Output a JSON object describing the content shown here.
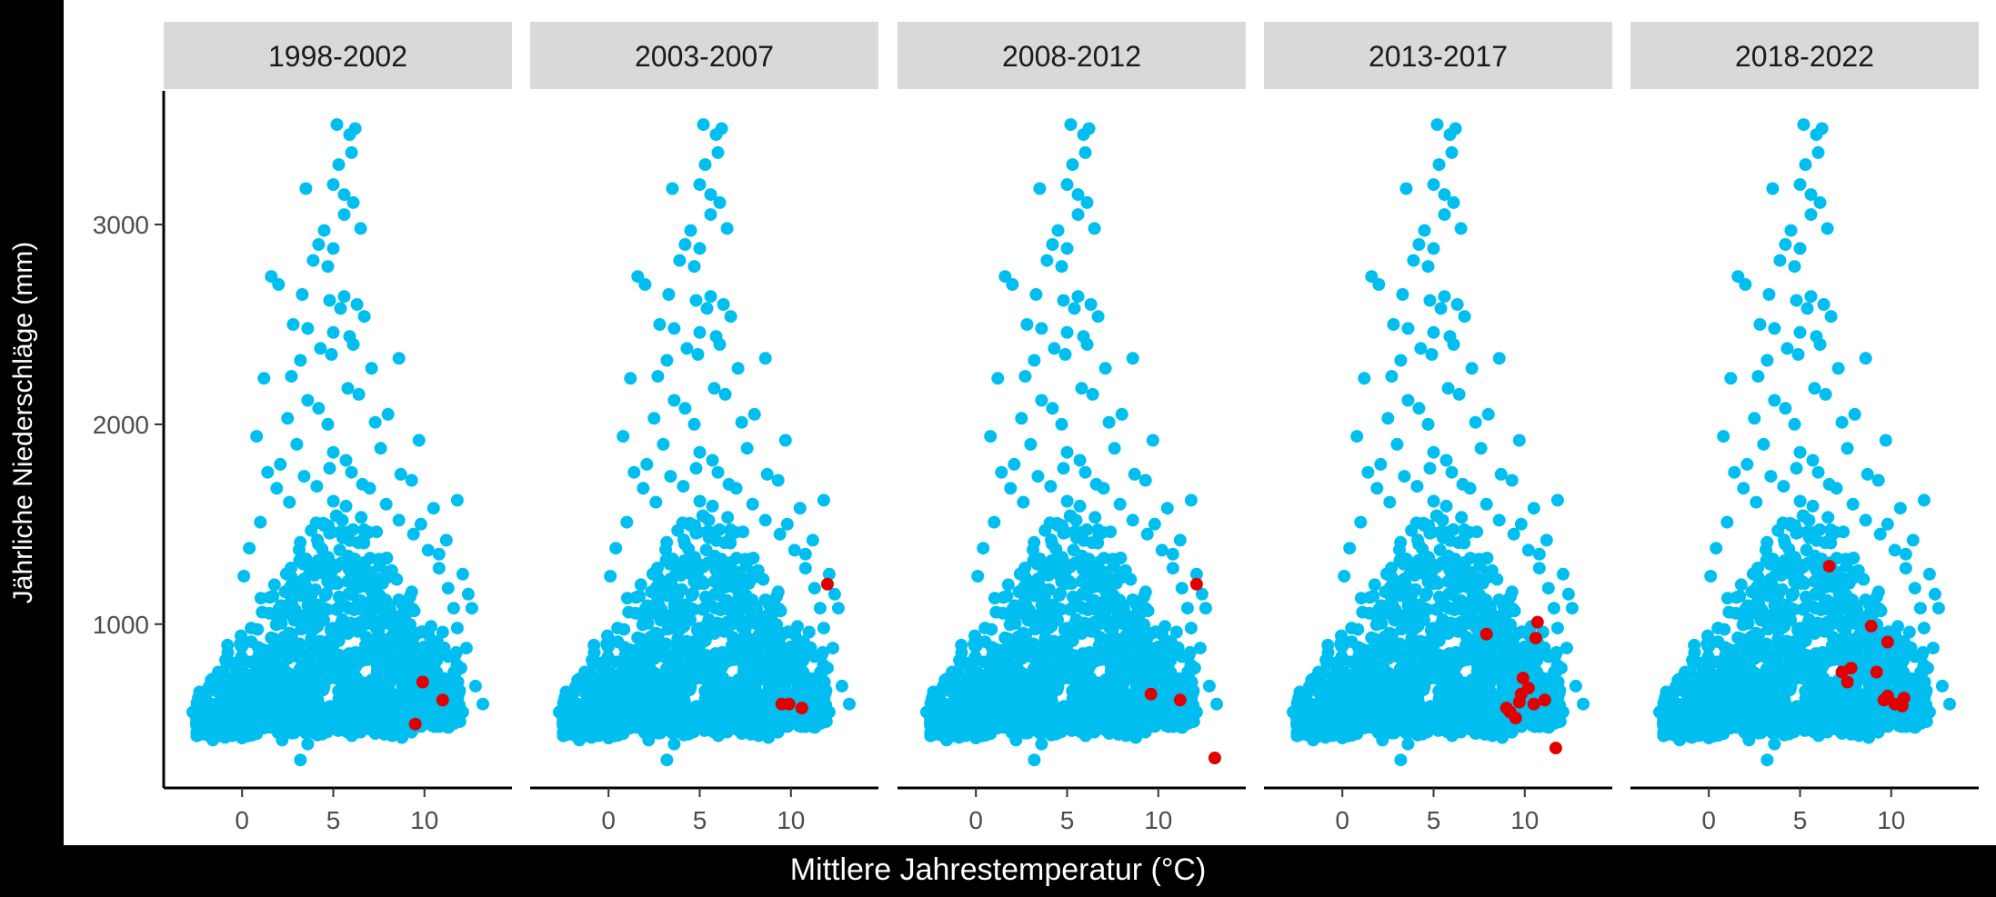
{
  "chart_data": {
    "type": "scatter",
    "layout": "faceted-1x5",
    "xlabel": "Mittlere Jahrestemperatur (°C)",
    "ylabel": "Jährliche Niederschläge (mm)",
    "xlim": [
      -3.5,
      14
    ],
    "ylim": [
      200,
      3600
    ],
    "x_ticks": [
      0,
      5,
      10
    ],
    "y_ticks": [
      1000,
      2000,
      3000
    ],
    "grid": false,
    "colors": {
      "background_series": "#00BFF0",
      "highlight_series": "#E00000",
      "strip_fill": "#D9D9D9"
    },
    "background_cloud": [
      [
        5.2,
        3500
      ],
      [
        5.9,
        3450
      ],
      [
        6.2,
        3480
      ],
      [
        6.0,
        3360
      ],
      [
        5.3,
        3300
      ],
      [
        5.0,
        3200
      ],
      [
        3.5,
        3180
      ],
      [
        5.6,
        3150
      ],
      [
        6.1,
        3110
      ],
      [
        5.6,
        3050
      ],
      [
        6.5,
        2980
      ],
      [
        4.5,
        2970
      ],
      [
        4.2,
        2900
      ],
      [
        5.0,
        2880
      ],
      [
        3.9,
        2820
      ],
      [
        4.7,
        2790
      ],
      [
        1.6,
        2740
      ],
      [
        2.0,
        2700
      ],
      [
        3.3,
        2650
      ],
      [
        5.6,
        2640
      ],
      [
        4.8,
        2620
      ],
      [
        6.3,
        2600
      ],
      [
        5.4,
        2580
      ],
      [
        6.7,
        2540
      ],
      [
        2.8,
        2500
      ],
      [
        3.6,
        2480
      ],
      [
        5.0,
        2460
      ],
      [
        5.9,
        2440
      ],
      [
        6.1,
        2400
      ],
      [
        4.3,
        2380
      ],
      [
        4.9,
        2350
      ],
      [
        3.2,
        2320
      ],
      [
        8.6,
        2330
      ],
      [
        7.1,
        2280
      ],
      [
        2.7,
        2240
      ],
      [
        1.2,
        2230
      ],
      [
        5.8,
        2180
      ],
      [
        6.4,
        2150
      ],
      [
        3.6,
        2120
      ],
      [
        4.2,
        2080
      ],
      [
        8.0,
        2050
      ],
      [
        2.5,
        2030
      ],
      [
        7.3,
        2010
      ],
      [
        4.7,
        2000
      ],
      [
        9.7,
        1920
      ],
      [
        0.8,
        1940
      ],
      [
        3.0,
        1900
      ],
      [
        7.6,
        1880
      ],
      [
        5.0,
        1860
      ],
      [
        5.7,
        1820
      ],
      [
        2.1,
        1800
      ],
      [
        1.4,
        1760
      ],
      [
        8.7,
        1750
      ],
      [
        9.3,
        1720
      ],
      [
        6.6,
        1700
      ],
      [
        11.8,
        1620
      ],
      [
        10.5,
        1580
      ],
      [
        9.8,
        1500
      ],
      [
        11.2,
        1420
      ],
      [
        10.8,
        1350
      ],
      [
        12.1,
        1250
      ],
      [
        12.4,
        1150
      ],
      [
        12.6,
        1080
      ],
      [
        11.8,
        980
      ],
      [
        12.3,
        880
      ],
      [
        12.0,
        780
      ],
      [
        12.8,
        690
      ],
      [
        13.2,
        600
      ],
      [
        12.1,
        560
      ],
      [
        10.9,
        520
      ],
      [
        -2.4,
        630
      ],
      [
        -2.7,
        560
      ],
      [
        -2.2,
        480
      ],
      [
        -1.6,
        420
      ],
      [
        0.0,
        430
      ],
      [
        2.2,
        420
      ],
      [
        3.2,
        320
      ],
      [
        3.6,
        400
      ],
      [
        4.4,
        450
      ],
      [
        6.5,
        460
      ],
      [
        8.6,
        470
      ],
      [
        -1.3,
        760
      ],
      [
        -0.9,
        820
      ],
      [
        -0.1,
        900
      ],
      [
        0.5,
        980
      ],
      [
        1.1,
        1060
      ],
      [
        1.7,
        1140
      ],
      [
        0.1,
        1240
      ],
      [
        0.4,
        1380
      ],
      [
        1.0,
        1510
      ],
      [
        1.9,
        1680
      ],
      [
        2.6,
        1610
      ],
      [
        3.4,
        1740
      ],
      [
        4.1,
        1690
      ],
      [
        4.8,
        1780
      ],
      [
        6.0,
        1760
      ],
      [
        7.0,
        1680
      ],
      [
        7.9,
        1600
      ],
      [
        8.6,
        1520
      ],
      [
        9.4,
        1450
      ],
      [
        10.2,
        1370
      ],
      [
        10.8,
        1280
      ],
      [
        11.3,
        1180
      ],
      [
        11.6,
        1080
      ],
      [
        11.0,
        960
      ],
      [
        10.3,
        880
      ],
      [
        9.6,
        800
      ],
      [
        8.9,
        740
      ],
      [
        8.0,
        680
      ],
      [
        7.2,
        620
      ],
      [
        6.3,
        580
      ],
      [
        5.5,
        560
      ],
      [
        4.6,
        540
      ],
      [
        3.8,
        520
      ],
      [
        2.9,
        500
      ],
      [
        2.0,
        490
      ],
      [
        1.2,
        480
      ],
      [
        0.3,
        470
      ],
      [
        -0.6,
        480
      ],
      [
        -1.4,
        500
      ],
      [
        -2.0,
        520
      ]
    ],
    "panels": [
      {
        "label": "1998-2002",
        "highlight_points": [
          [
            9.9,
            710
          ],
          [
            11.0,
            620
          ],
          [
            9.5,
            500
          ]
        ]
      },
      {
        "label": "2003-2007",
        "highlight_points": [
          [
            12.0,
            1200
          ],
          [
            9.5,
            600
          ],
          [
            9.9,
            600
          ],
          [
            10.6,
            580
          ]
        ]
      },
      {
        "label": "2008-2012",
        "highlight_points": [
          [
            12.1,
            1200
          ],
          [
            9.6,
            650
          ],
          [
            11.2,
            620
          ],
          [
            13.1,
            330
          ]
        ]
      },
      {
        "label": "2013-2017",
        "highlight_points": [
          [
            10.7,
            1010
          ],
          [
            7.9,
            950
          ],
          [
            10.6,
            930
          ],
          [
            9.9,
            730
          ],
          [
            10.2,
            680
          ],
          [
            9.8,
            650
          ],
          [
            9.7,
            610
          ],
          [
            10.5,
            600
          ],
          [
            9.2,
            560
          ],
          [
            9.5,
            530
          ],
          [
            9.0,
            580
          ],
          [
            11.1,
            620
          ],
          [
            11.7,
            380
          ]
        ]
      },
      {
        "label": "2018-2022",
        "highlight_points": [
          [
            6.6,
            1290
          ],
          [
            8.9,
            990
          ],
          [
            9.8,
            910
          ],
          [
            7.8,
            780
          ],
          [
            7.3,
            760
          ],
          [
            9.2,
            760
          ],
          [
            7.6,
            710
          ],
          [
            9.8,
            640
          ],
          [
            10.2,
            600
          ],
          [
            10.6,
            590
          ],
          [
            10.7,
            630
          ],
          [
            9.6,
            620
          ]
        ]
      }
    ]
  }
}
